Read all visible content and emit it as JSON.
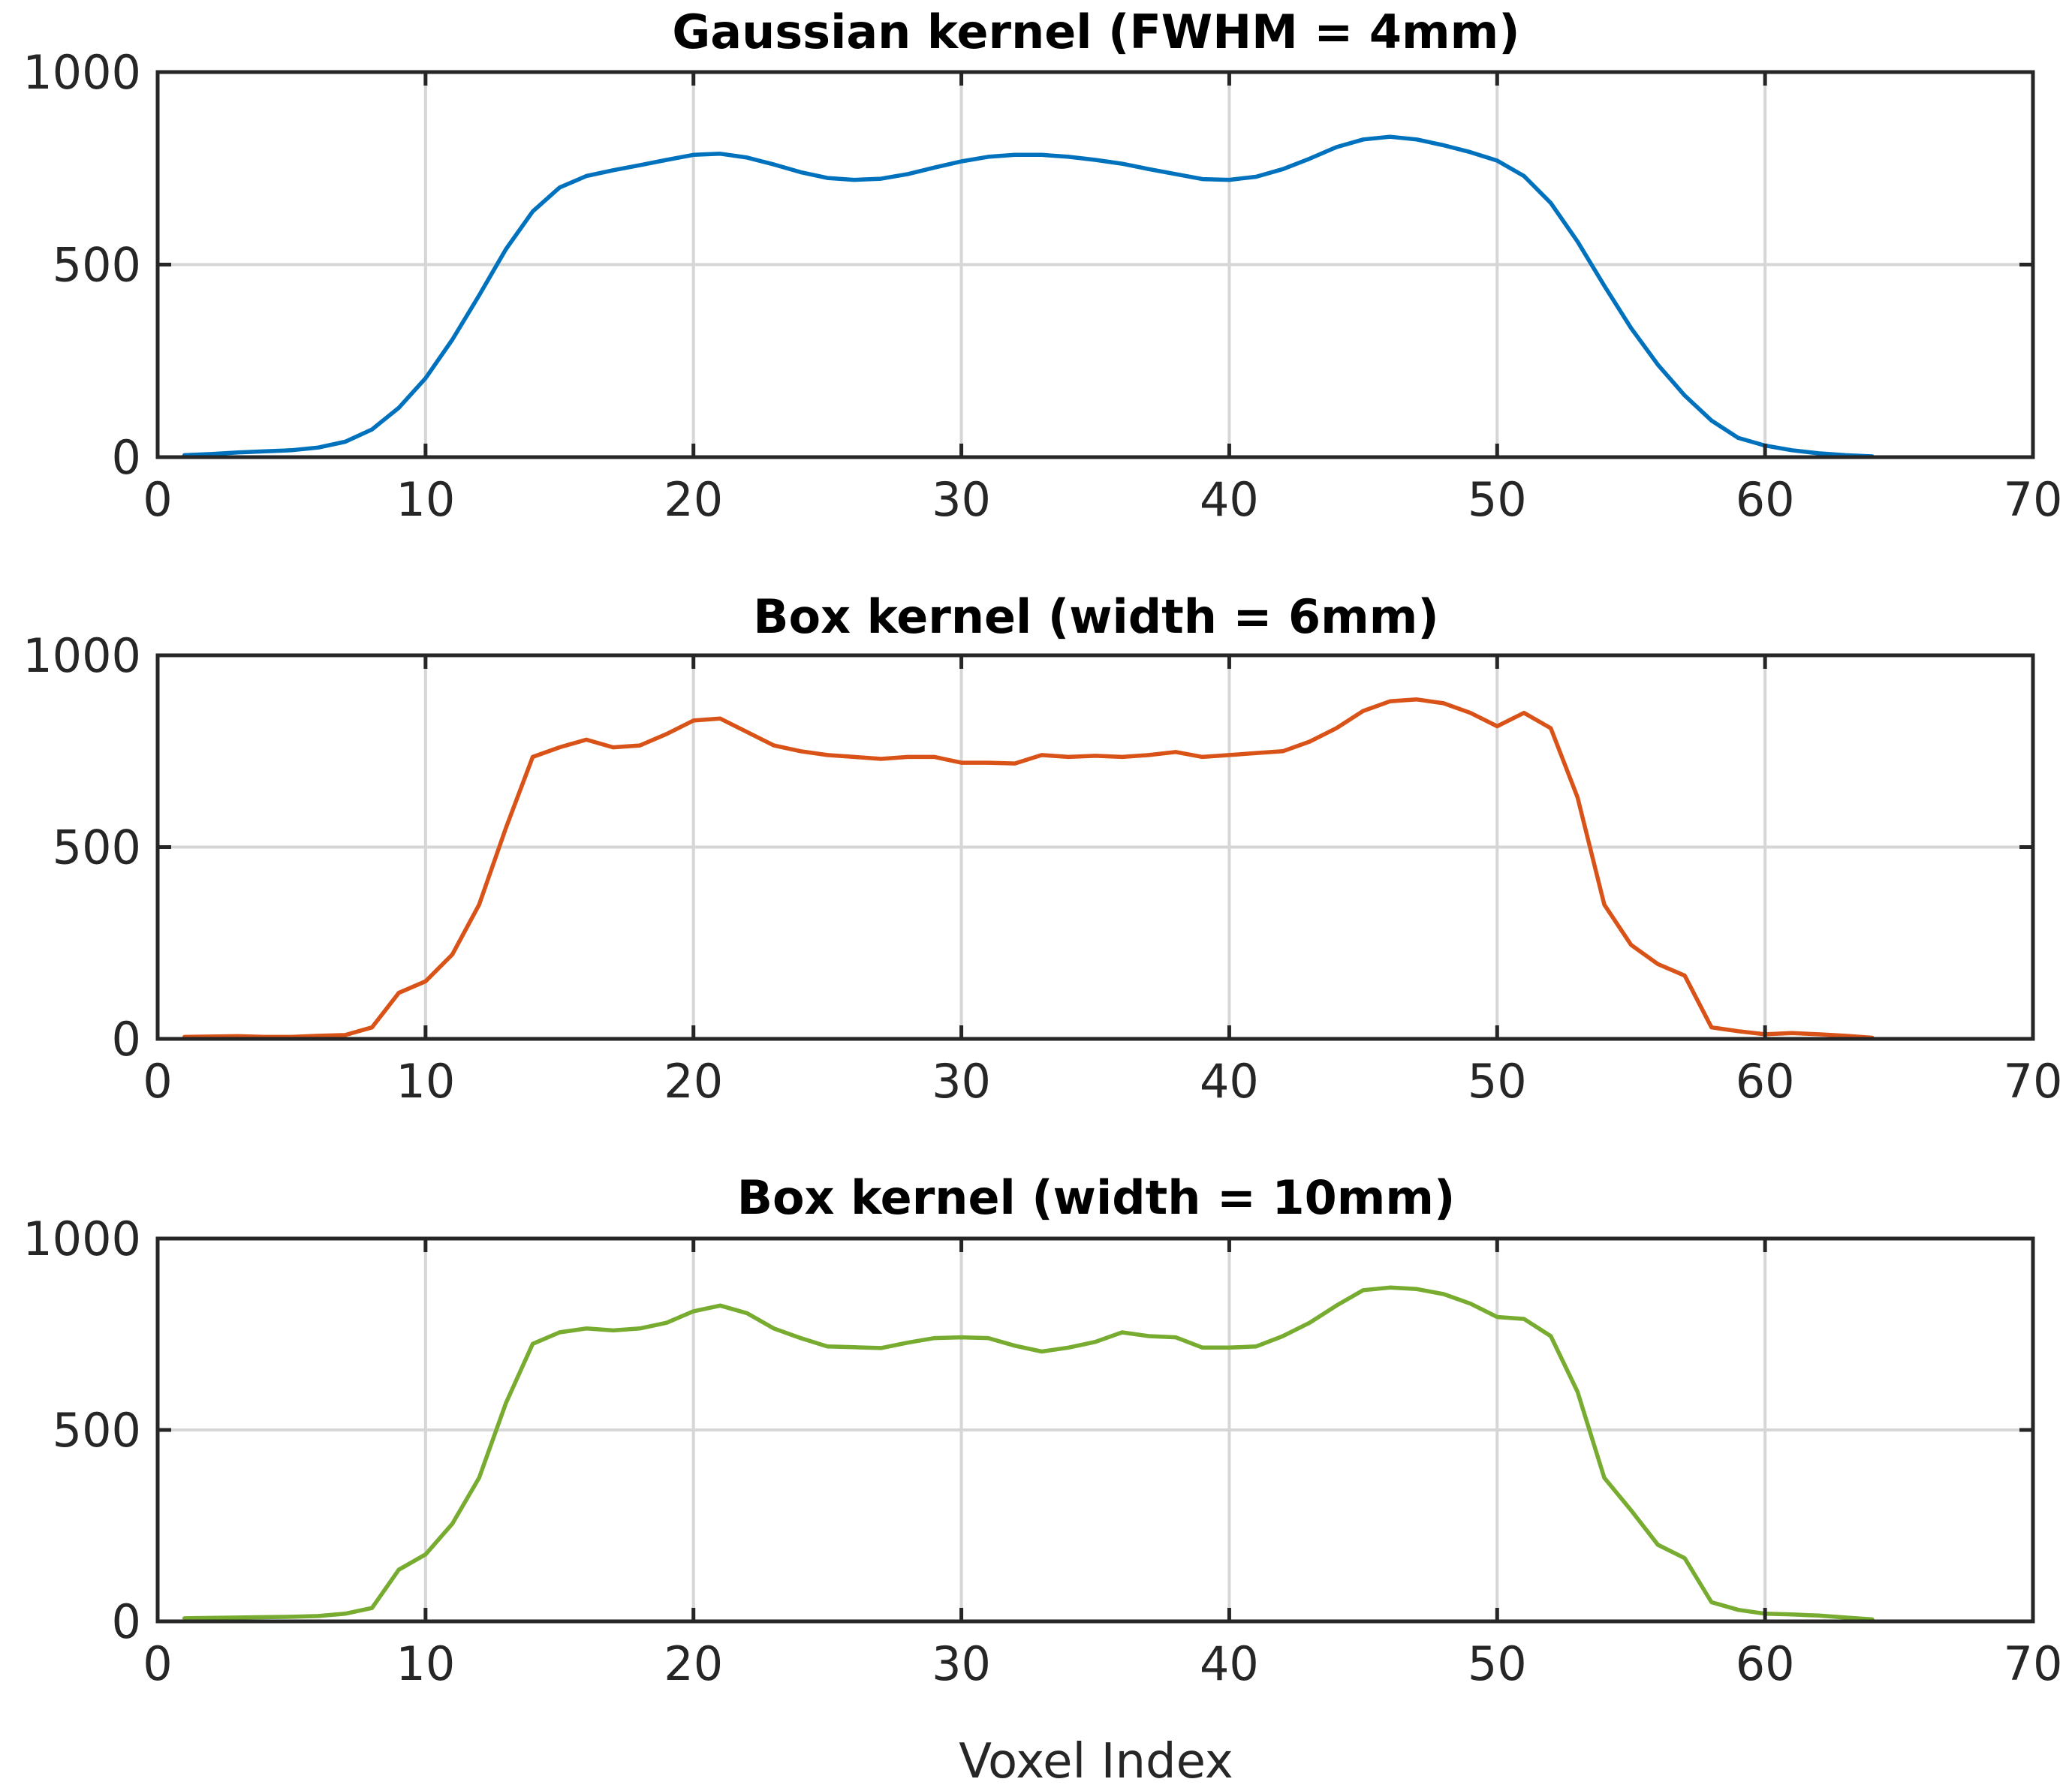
{
  "chart_data": [
    {
      "type": "line",
      "title": "Gaussian kernel (FWHM = 4mm)",
      "xlabel": "",
      "ylabel": "",
      "xlim": [
        0,
        70
      ],
      "ylim": [
        0,
        1000
      ],
      "xticks": [
        "0",
        "10",
        "20",
        "30",
        "40",
        "50",
        "60",
        "70"
      ],
      "yticks": [
        "0",
        "500",
        "1000"
      ],
      "grid": true,
      "series": [
        {
          "color": "#0072BD",
          "x": [
            1,
            2,
            3,
            4,
            5,
            6,
            7,
            8,
            9,
            10,
            11,
            12,
            13,
            14,
            15,
            16,
            17,
            18,
            19,
            20,
            21,
            22,
            23,
            24,
            25,
            26,
            27,
            28,
            29,
            30,
            31,
            32,
            33,
            34,
            35,
            36,
            37,
            38,
            39,
            40,
            41,
            42,
            43,
            44,
            45,
            46,
            47,
            48,
            49,
            50,
            51,
            52,
            53,
            54,
            55,
            56,
            57,
            58,
            59,
            60,
            61,
            62,
            63,
            64
          ],
          "values": [
            5,
            8,
            12,
            15,
            18,
            25,
            40,
            72,
            128,
            205,
            305,
            420,
            540,
            638,
            700,
            730,
            745,
            758,
            772,
            785,
            788,
            778,
            760,
            740,
            725,
            720,
            723,
            735,
            752,
            768,
            780,
            785,
            785,
            780,
            772,
            762,
            748,
            735,
            722,
            720,
            728,
            748,
            775,
            805,
            825,
            832,
            825,
            810,
            792,
            770,
            730,
            660,
            560,
            445,
            335,
            240,
            160,
            95,
            50,
            30,
            18,
            10,
            5,
            2
          ]
        }
      ]
    },
    {
      "type": "line",
      "title": "Box kernel (width = 6mm)",
      "xlabel": "",
      "ylabel": "",
      "xlim": [
        0,
        70
      ],
      "ylim": [
        0,
        1000
      ],
      "xticks": [
        "0",
        "10",
        "20",
        "30",
        "40",
        "50",
        "60",
        "70"
      ],
      "yticks": [
        "0",
        "500",
        "1000"
      ],
      "grid": true,
      "series": [
        {
          "color": "#D95319",
          "x": [
            1,
            2,
            3,
            4,
            5,
            6,
            7,
            8,
            9,
            10,
            11,
            12,
            13,
            14,
            15,
            16,
            17,
            18,
            19,
            20,
            21,
            22,
            23,
            24,
            25,
            26,
            27,
            28,
            29,
            30,
            31,
            32,
            33,
            34,
            35,
            36,
            37,
            38,
            39,
            40,
            41,
            42,
            43,
            44,
            45,
            46,
            47,
            48,
            49,
            50,
            51,
            52,
            53,
            54,
            55,
            56,
            57,
            58,
            59,
            60,
            61,
            62,
            63,
            64
          ],
          "values": [
            5,
            6,
            7,
            5,
            5,
            8,
            10,
            30,
            120,
            150,
            220,
            350,
            550,
            735,
            760,
            780,
            760,
            765,
            795,
            830,
            835,
            800,
            765,
            750,
            740,
            735,
            730,
            735,
            735,
            720,
            720,
            718,
            740,
            735,
            738,
            735,
            740,
            748,
            735,
            740,
            745,
            750,
            775,
            810,
            855,
            880,
            885,
            875,
            850,
            815,
            850,
            810,
            630,
            350,
            245,
            195,
            165,
            30,
            20,
            12,
            15,
            12,
            8,
            3
          ]
        }
      ]
    },
    {
      "type": "line",
      "title": "Box kernel (width = 10mm)",
      "xlabel": "Voxel Index",
      "ylabel": "",
      "xlim": [
        0,
        70
      ],
      "ylim": [
        0,
        1000
      ],
      "xticks": [
        "0",
        "10",
        "20",
        "30",
        "40",
        "50",
        "60",
        "70"
      ],
      "yticks": [
        "0",
        "500",
        "1000"
      ],
      "grid": true,
      "series": [
        {
          "color": "#77AC30",
          "x": [
            1,
            2,
            3,
            4,
            5,
            6,
            7,
            8,
            9,
            10,
            11,
            12,
            13,
            14,
            15,
            16,
            17,
            18,
            19,
            20,
            21,
            22,
            23,
            24,
            25,
            26,
            27,
            28,
            29,
            30,
            31,
            32,
            33,
            34,
            35,
            36,
            37,
            38,
            39,
            40,
            41,
            42,
            43,
            44,
            45,
            46,
            47,
            48,
            49,
            50,
            51,
            52,
            53,
            54,
            55,
            56,
            57,
            58,
            59,
            60,
            61,
            62,
            63,
            64
          ],
          "values": [
            8,
            9,
            10,
            11,
            12,
            14,
            20,
            35,
            135,
            175,
            255,
            375,
            570,
            725,
            755,
            765,
            760,
            765,
            780,
            810,
            825,
            805,
            765,
            740,
            718,
            716,
            714,
            728,
            740,
            742,
            740,
            720,
            705,
            715,
            730,
            755,
            745,
            742,
            715,
            715,
            718,
            745,
            780,
            825,
            865,
            872,
            868,
            855,
            830,
            795,
            790,
            745,
            600,
            375,
            290,
            200,
            165,
            50,
            30,
            20,
            18,
            15,
            10,
            5
          ]
        }
      ]
    }
  ]
}
